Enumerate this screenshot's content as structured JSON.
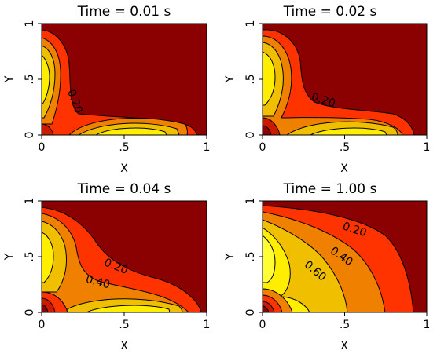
{
  "chart_data": [
    {
      "type": "contour",
      "title": "Time = 0.01 s",
      "xlabel": "X",
      "ylabel": "Y",
      "xlim": [
        0,
        1
      ],
      "ylim": [
        0,
        1
      ],
      "xticks": [
        "0",
        ".5",
        "1"
      ],
      "yticks": [
        "0",
        ".5",
        "1"
      ],
      "time_s": 0.01,
      "contour_labels": [
        {
          "text": "0.20",
          "x": 0.2,
          "y": 0.3,
          "angle": 70
        }
      ]
    },
    {
      "type": "contour",
      "title": "Time = 0.02 s",
      "xlabel": "X",
      "ylabel": "Y",
      "xlim": [
        0,
        1
      ],
      "ylim": [
        0,
        1
      ],
      "xticks": [
        "0",
        ".5",
        "1"
      ],
      "yticks": [
        "0",
        ".5",
        "1"
      ],
      "time_s": 0.02,
      "contour_labels": [
        {
          "text": "0.20",
          "x": 0.37,
          "y": 0.31,
          "angle": 18
        }
      ]
    },
    {
      "type": "contour",
      "title": "Time = 0.04 s",
      "xlabel": "X",
      "ylabel": "Y",
      "xlim": [
        0,
        1
      ],
      "ylim": [
        0,
        1
      ],
      "xticks": [
        "0",
        ".5",
        "1"
      ],
      "yticks": [
        "0",
        ".5",
        "1"
      ],
      "time_s": 0.04,
      "contour_labels": [
        {
          "text": "0.20",
          "x": 0.45,
          "y": 0.41,
          "angle": 22
        },
        {
          "text": "0.40",
          "x": 0.34,
          "y": 0.27,
          "angle": 15
        }
      ]
    },
    {
      "type": "contour",
      "title": "Time = 1.00 s",
      "xlabel": "X",
      "ylabel": "Y",
      "xlim": [
        0,
        1
      ],
      "ylim": [
        0,
        1
      ],
      "xticks": [
        "0",
        ".5",
        "1"
      ],
      "yticks": [
        "0",
        ".5",
        "1"
      ],
      "time_s": 1.0,
      "contour_labels": [
        {
          "text": "0.20",
          "x": 0.56,
          "y": 0.74,
          "angle": 18
        },
        {
          "text": "0.40",
          "x": 0.48,
          "y": 0.5,
          "angle": 35
        },
        {
          "text": "0.60",
          "x": 0.32,
          "y": 0.37,
          "angle": 40
        }
      ]
    }
  ],
  "colors": {
    "background": "#8b0000",
    "levels": [
      "#cc1a00",
      "#ff3300",
      "#f08000",
      "#f0c000",
      "#ffee00",
      "#ffff33"
    ]
  }
}
